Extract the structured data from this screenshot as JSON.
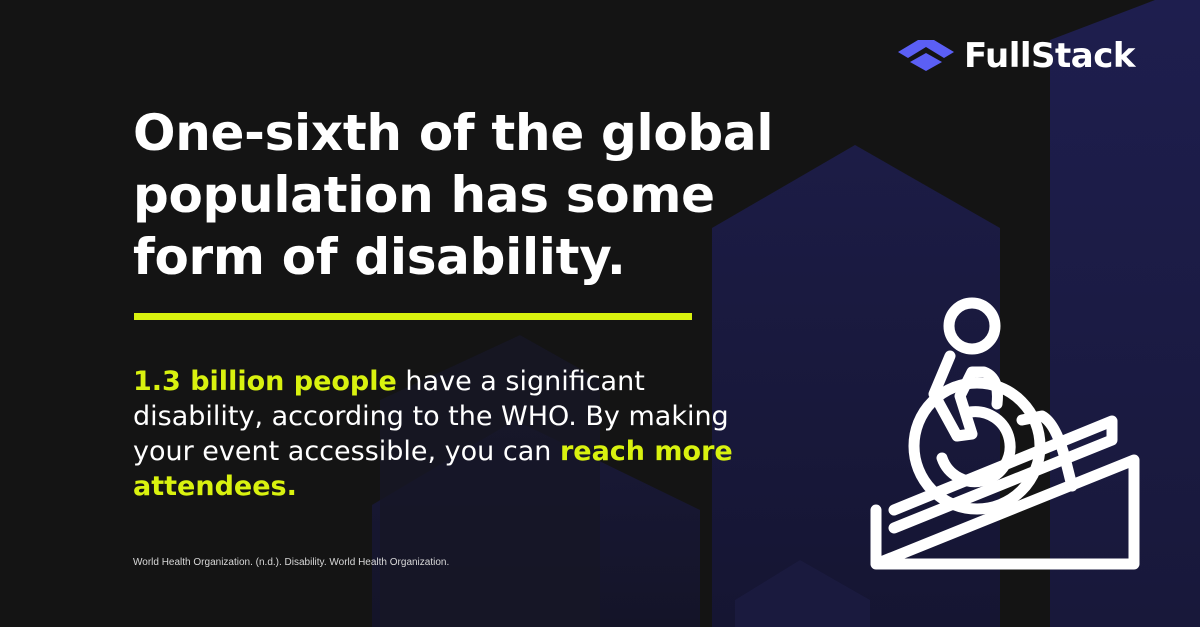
{
  "brand": {
    "name": "FullStack",
    "logo_icon": "layered-chevron-icon"
  },
  "headline": "One-sixth of the global population has some form of disability.",
  "body": {
    "highlight_1": "1.3 billion people",
    "text_1": " have a significant disability, according to the WHO. By making your event accessible, you can ",
    "highlight_2": "reach more attendees."
  },
  "source": "World Health Organization. (n.d.). Disability. World Health Organization.",
  "illustration": {
    "icon": "wheelchair-ramp-icon"
  },
  "colors": {
    "background": "#141414",
    "accent": "#d9f20f",
    "text": "#ffffff",
    "brand_primary": "#5b5ff5",
    "background_shapes": "#1c1c45"
  }
}
